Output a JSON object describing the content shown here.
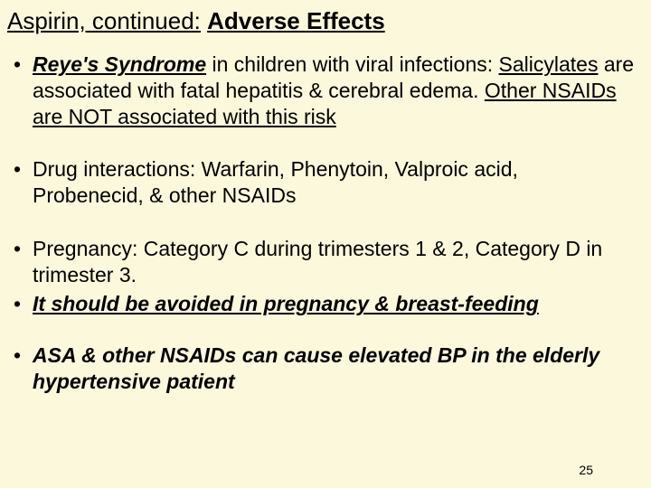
{
  "title": {
    "part1": "Aspirin, continued:",
    "part2": "Adverse Effects"
  },
  "bullets": {
    "b1": {
      "s1": "Reye's Syndrome",
      "s2": " in children with viral infections: ",
      "s3": "Salicylates",
      "s4": " are associated with fatal hepatitis & cerebral edema. ",
      "s5": "Other NSAIDs are NOT associated with this risk"
    },
    "b2": {
      "text": "Drug interactions: Warfarin, Phenytoin, Valproic acid, Probenecid, & other NSAIDs"
    },
    "b3": {
      "text": "Pregnancy: Category C during trimesters 1 & 2, Category D in trimester 3."
    },
    "b4": {
      "text": "It should be avoided in pregnancy & breast-feeding"
    },
    "b5": {
      "text": "ASA & other NSAIDs can cause elevated BP in the elderly hypertensive patient"
    }
  },
  "page_number": "25",
  "colors": {
    "background": "#fbf8db",
    "text": "#000000"
  },
  "typography": {
    "title_fontsize": 26,
    "body_fontsize": 23,
    "pagenum_fontsize": 14,
    "font_family": "Arial"
  }
}
